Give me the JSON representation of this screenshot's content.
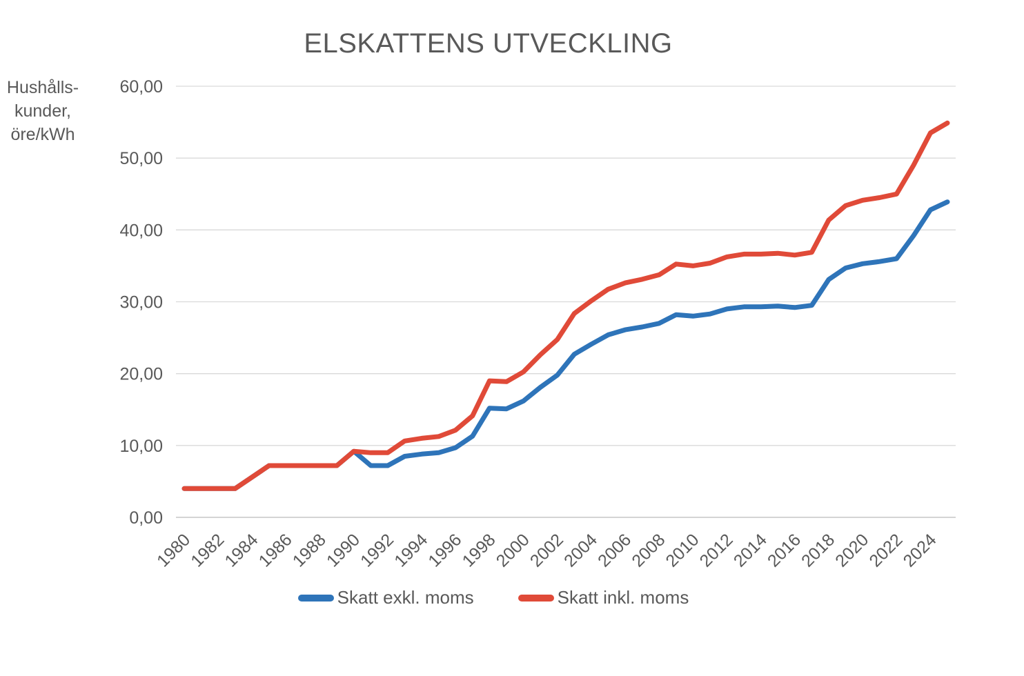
{
  "chart": {
    "title": "ELSKATTENS UTVECKLING",
    "y_axis_label_lines": [
      "Hushålls-",
      "kunder,",
      "öre/kWh"
    ]
  },
  "colors": {
    "text": "#595959",
    "gridline": "#D9D9D9",
    "zero_line": "#C6C6C6",
    "background": "#FFFFFF"
  },
  "chart_data": {
    "type": "line",
    "title": "ELSKATTENS UTVECKLING",
    "ylabel": "Hushålls-kunder, öre/kWh",
    "xlabel": "",
    "ylim": [
      0,
      60
    ],
    "y_tick_step": 10,
    "y_tick_labels": [
      "0,00",
      "10,00",
      "20,00",
      "30,00",
      "40,00",
      "50,00",
      "60,00"
    ],
    "x": [
      1980,
      1981,
      1982,
      1983,
      1984,
      1985,
      1986,
      1987,
      1988,
      1989,
      1990,
      1991,
      1992,
      1993,
      1994,
      1995,
      1996,
      1997,
      1998,
      1999,
      2000,
      2001,
      2002,
      2003,
      2004,
      2005,
      2006,
      2007,
      2008,
      2009,
      2010,
      2011,
      2012,
      2013,
      2014,
      2015,
      2016,
      2017,
      2018,
      2019,
      2020,
      2021,
      2022,
      2023,
      2024,
      2025
    ],
    "x_tick_labels": [
      "1980",
      "1982",
      "1984",
      "1986",
      "1988",
      "1990",
      "1992",
      "1994",
      "1996",
      "1998",
      "2000",
      "2002",
      "2004",
      "2006",
      "2008",
      "2010",
      "2012",
      "2014",
      "2016",
      "2018",
      "2020",
      "2022",
      "2024"
    ],
    "grid": true,
    "legend_position": "bottom",
    "series": [
      {
        "id": "exkl",
        "name": "Skatt exkl. moms",
        "color": "#2E74B9",
        "values": [
          4.0,
          4.0,
          4.0,
          4.0,
          5.6,
          7.2,
          7.2,
          7.2,
          7.2,
          7.2,
          9.2,
          7.2,
          7.2,
          8.5,
          8.8,
          9.0,
          9.7,
          11.3,
          15.2,
          15.1,
          16.2,
          18.1,
          19.8,
          22.7,
          24.1,
          25.4,
          26.1,
          26.5,
          27.0,
          28.2,
          28.0,
          28.3,
          29.0,
          29.3,
          29.3,
          29.4,
          29.2,
          29.5,
          33.1,
          34.7,
          35.3,
          35.6,
          36.0,
          39.2,
          42.8,
          43.9
        ]
      },
      {
        "id": "inkl",
        "name": "Skatt inkl. moms",
        "color": "#E04A38",
        "values": [
          4.0,
          4.0,
          4.0,
          4.0,
          5.6,
          7.2,
          7.2,
          7.2,
          7.2,
          7.2,
          9.2,
          9.0,
          9.0,
          10.63,
          11.0,
          11.25,
          12.13,
          14.13,
          19.0,
          18.88,
          20.25,
          22.63,
          24.75,
          28.38,
          30.13,
          31.75,
          32.63,
          33.13,
          33.75,
          35.25,
          35.0,
          35.38,
          36.25,
          36.63,
          36.63,
          36.75,
          36.5,
          36.88,
          41.38,
          43.38,
          44.13,
          44.5,
          45.0,
          49.0,
          53.5,
          54.88
        ]
      }
    ]
  }
}
